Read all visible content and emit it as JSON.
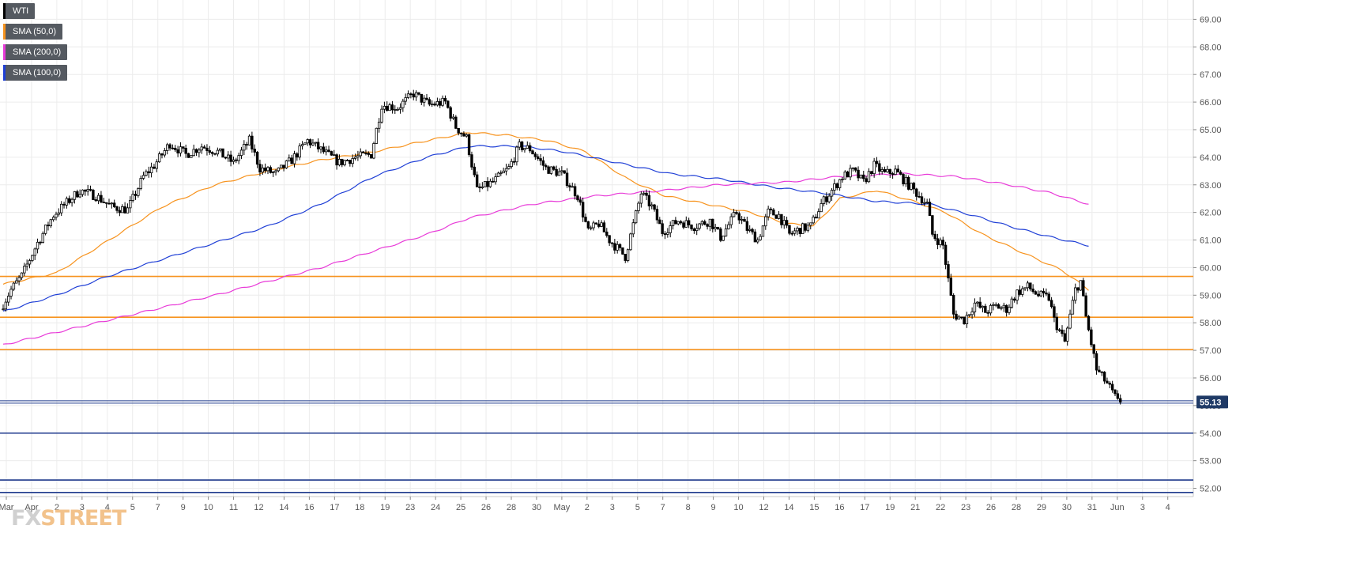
{
  "legend": [
    {
      "label": "WTI",
      "color": "#000000"
    },
    {
      "label": "SMA (50,0)",
      "color": "#f7931e"
    },
    {
      "label": "SMA (200,0)",
      "color": "#e83ad8"
    },
    {
      "label": "SMA (100,0)",
      "color": "#1f3fd6"
    }
  ],
  "logo": {
    "text_fx": "FX",
    "text_street": "STREET"
  },
  "price_tag": "55.13",
  "colors": {
    "sma50": "#f7931e",
    "sma100": "#1f3fd6",
    "sma200": "#e83ad8",
    "resistance": "#f7931e",
    "support": "#1f3a8c",
    "price_tag_bg": "#1f3a66"
  },
  "chart_data": {
    "type": "candlestick",
    "title": "",
    "xlabel": "",
    "ylabel": "",
    "ylim": [
      51.7,
      69.7
    ],
    "y_ticks": [
      52.0,
      53.0,
      54.0,
      55.0,
      56.0,
      57.0,
      58.0,
      59.0,
      60.0,
      61.0,
      62.0,
      63.0,
      64.0,
      65.0,
      66.0,
      67.0,
      68.0,
      69.0
    ],
    "y_tick_labels": [
      "52.00",
      "53.00",
      "54.00",
      "55.00",
      "56.00",
      "57.00",
      "58.00",
      "59.00",
      "60.00",
      "61.00",
      "62.00",
      "63.00",
      "64.00",
      "65.00",
      "66.00",
      "67.00",
      "68.00",
      "69.00"
    ],
    "x_tick_labels": [
      "Mar",
      "Apr",
      "2",
      "3",
      "4",
      "5",
      "7",
      "9",
      "10",
      "11",
      "12",
      "14",
      "16",
      "17",
      "18",
      "19",
      "23",
      "24",
      "25",
      "26",
      "28",
      "30",
      "May",
      "2",
      "3",
      "5",
      "7",
      "8",
      "9",
      "10",
      "12",
      "14",
      "15",
      "16",
      "17",
      "19",
      "21",
      "22",
      "23",
      "26",
      "28",
      "29",
      "30",
      "31",
      "Jun",
      "3",
      "4"
    ],
    "grid": true,
    "horizontal_levels": [
      {
        "value": 59.68,
        "kind": "resistance"
      },
      {
        "value": 58.2,
        "kind": "resistance"
      },
      {
        "value": 57.03,
        "kind": "resistance"
      },
      {
        "value": 55.13,
        "kind": "current"
      },
      {
        "value": 54.0,
        "kind": "support"
      },
      {
        "value": 52.3,
        "kind": "support"
      },
      {
        "value": 51.85,
        "kind": "support"
      }
    ],
    "series": [
      {
        "name": "WTI",
        "type": "candlestick",
        "anchors": [
          [
            0,
            58.5
          ],
          [
            4,
            59.2
          ],
          [
            8,
            59.7
          ],
          [
            14,
            60.9
          ],
          [
            20,
            61.9
          ],
          [
            30,
            62.8
          ],
          [
            36,
            62.6
          ],
          [
            42,
            62.2
          ],
          [
            48,
            62.1
          ],
          [
            54,
            63.3
          ],
          [
            58,
            63.7
          ],
          [
            64,
            64.5
          ],
          [
            70,
            64.1
          ],
          [
            76,
            64.4
          ],
          [
            82,
            64.2
          ],
          [
            88,
            63.8
          ],
          [
            94,
            64.6
          ],
          [
            98,
            63.6
          ],
          [
            104,
            63.4
          ],
          [
            110,
            63.9
          ],
          [
            116,
            64.6
          ],
          [
            122,
            64.2
          ],
          [
            128,
            63.8
          ],
          [
            134,
            64.0
          ],
          [
            140,
            64.1
          ],
          [
            144,
            65.9
          ],
          [
            150,
            65.8
          ],
          [
            156,
            66.3
          ],
          [
            162,
            65.9
          ],
          [
            168,
            66.0
          ],
          [
            172,
            65.1
          ],
          [
            176,
            64.7
          ],
          [
            180,
            62.8
          ],
          [
            186,
            63.1
          ],
          [
            192,
            63.6
          ],
          [
            196,
            64.4
          ],
          [
            200,
            64.3
          ],
          [
            206,
            63.6
          ],
          [
            212,
            63.4
          ],
          [
            218,
            62.6
          ],
          [
            222,
            61.3
          ],
          [
            226,
            61.6
          ],
          [
            230,
            61.0
          ],
          [
            236,
            60.4
          ],
          [
            242,
            62.7
          ],
          [
            246,
            62.2
          ],
          [
            250,
            61.3
          ],
          [
            256,
            61.7
          ],
          [
            262,
            61.5
          ],
          [
            268,
            61.7
          ],
          [
            272,
            61.1
          ],
          [
            278,
            62.0
          ],
          [
            282,
            61.4
          ],
          [
            286,
            61.0
          ],
          [
            290,
            62.0
          ],
          [
            294,
            61.9
          ],
          [
            298,
            61.2
          ],
          [
            302,
            61.4
          ],
          [
            306,
            61.5
          ],
          [
            310,
            62.3
          ],
          [
            314,
            62.8
          ],
          [
            318,
            63.3
          ],
          [
            322,
            63.5
          ],
          [
            326,
            63.1
          ],
          [
            330,
            63.7
          ],
          [
            334,
            63.4
          ],
          [
            338,
            63.5
          ],
          [
            342,
            63.1
          ],
          [
            346,
            62.7
          ],
          [
            350,
            62.3
          ],
          [
            352,
            61.2
          ],
          [
            356,
            60.8
          ],
          [
            360,
            58.3
          ],
          [
            364,
            58.1
          ],
          [
            368,
            58.7
          ],
          [
            372,
            58.4
          ],
          [
            376,
            58.6
          ],
          [
            380,
            58.5
          ],
          [
            384,
            59.1
          ],
          [
            388,
            59.3
          ],
          [
            392,
            59.0
          ],
          [
            396,
            58.9
          ],
          [
            398,
            58.1
          ],
          [
            402,
            57.3
          ],
          [
            406,
            59.2
          ],
          [
            408,
            59.5
          ],
          [
            410,
            58.2
          ],
          [
            414,
            56.3
          ],
          [
            418,
            55.8
          ],
          [
            422,
            55.13
          ]
        ]
      },
      {
        "name": "SMA (50,0)",
        "type": "line",
        "anchors": [
          [
            0,
            59.4
          ],
          [
            20,
            59.8
          ],
          [
            40,
            61.0
          ],
          [
            60,
            62.2
          ],
          [
            80,
            63.0
          ],
          [
            100,
            63.5
          ],
          [
            120,
            63.9
          ],
          [
            140,
            64.2
          ],
          [
            160,
            64.6
          ],
          [
            176,
            64.9
          ],
          [
            190,
            64.8
          ],
          [
            206,
            64.6
          ],
          [
            220,
            64.2
          ],
          [
            236,
            63.2
          ],
          [
            250,
            62.6
          ],
          [
            266,
            62.3
          ],
          [
            282,
            62.0
          ],
          [
            296,
            61.6
          ],
          [
            306,
            61.5
          ],
          [
            316,
            62.5
          ],
          [
            330,
            62.8
          ],
          [
            344,
            62.4
          ],
          [
            356,
            62.0
          ],
          [
            370,
            61.2
          ],
          [
            386,
            60.5
          ],
          [
            400,
            59.9
          ],
          [
            410,
            59.2
          ]
        ]
      },
      {
        "name": "SMA (100,0)",
        "type": "line",
        "anchors": [
          [
            0,
            58.4
          ],
          [
            20,
            59.0
          ],
          [
            40,
            59.7
          ],
          [
            60,
            60.3
          ],
          [
            80,
            60.9
          ],
          [
            100,
            61.5
          ],
          [
            120,
            62.3
          ],
          [
            140,
            63.3
          ],
          [
            160,
            64.0
          ],
          [
            176,
            64.4
          ],
          [
            196,
            64.4
          ],
          [
            212,
            64.2
          ],
          [
            232,
            63.8
          ],
          [
            252,
            63.4
          ],
          [
            272,
            63.2
          ],
          [
            292,
            62.9
          ],
          [
            310,
            62.7
          ],
          [
            330,
            62.4
          ],
          [
            350,
            62.3
          ],
          [
            366,
            61.9
          ],
          [
            380,
            61.5
          ],
          [
            396,
            61.1
          ],
          [
            410,
            60.8
          ]
        ]
      },
      {
        "name": "SMA (200,0)",
        "type": "line",
        "anchors": [
          [
            0,
            57.2
          ],
          [
            40,
            58.1
          ],
          [
            80,
            59.0
          ],
          [
            120,
            60.0
          ],
          [
            160,
            61.2
          ],
          [
            176,
            61.8
          ],
          [
            200,
            62.3
          ],
          [
            224,
            62.6
          ],
          [
            250,
            62.8
          ],
          [
            270,
            63.0
          ],
          [
            296,
            63.1
          ],
          [
            316,
            63.3
          ],
          [
            340,
            63.4
          ],
          [
            360,
            63.3
          ],
          [
            380,
            63.0
          ],
          [
            396,
            62.7
          ],
          [
            410,
            62.3
          ]
        ]
      }
    ]
  }
}
